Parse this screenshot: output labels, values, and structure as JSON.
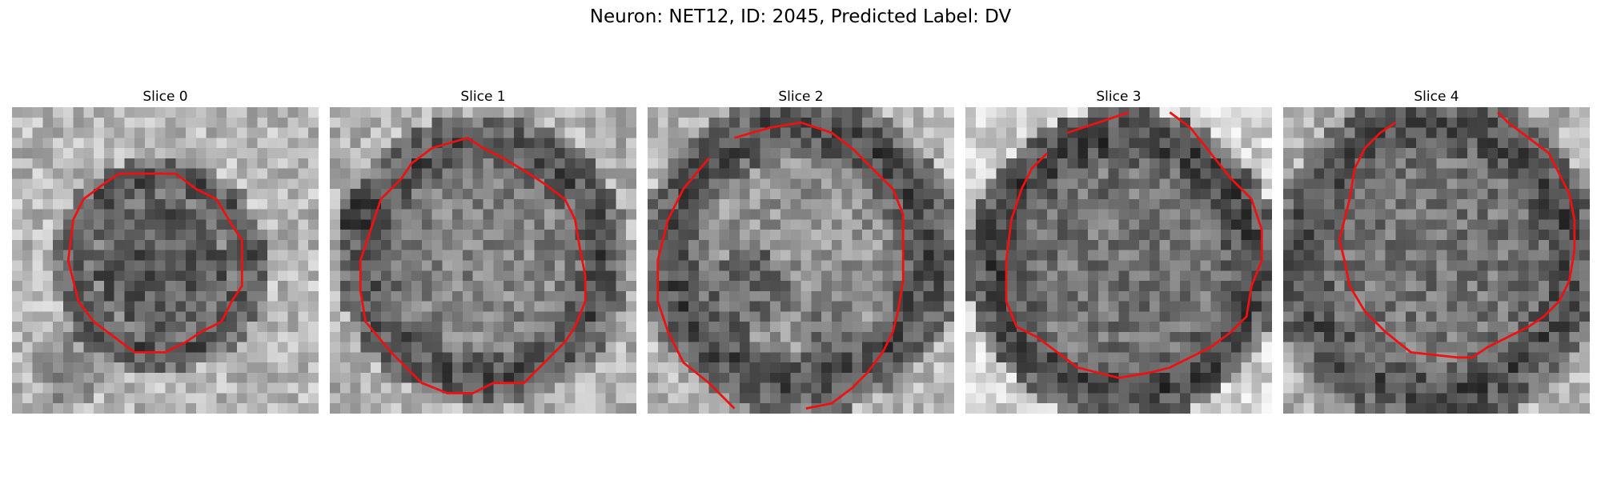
{
  "figure": {
    "title": "Neuron: NET12, ID: 2045, Predicted Label: DV",
    "contour_color": "#ee1111"
  },
  "panels": [
    {
      "title": "Slice 0"
    },
    {
      "title": "Slice 1"
    },
    {
      "title": "Slice 2"
    },
    {
      "title": "Slice 3"
    },
    {
      "title": "Slice 4"
    }
  ]
}
